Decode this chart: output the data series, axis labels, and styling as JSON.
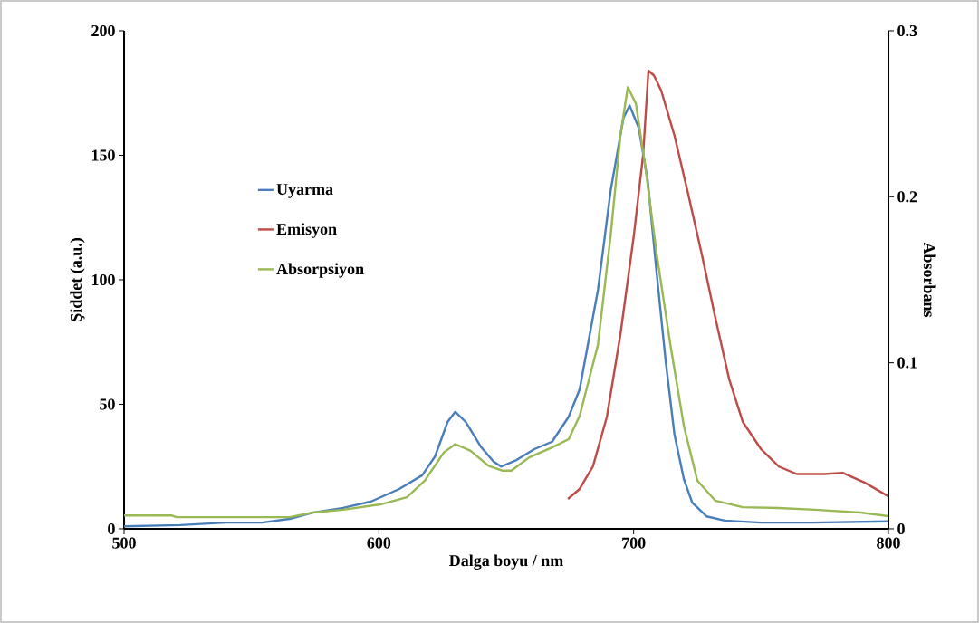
{
  "chart_data": {
    "type": "line",
    "xlabel": "Dalga boyu / nm",
    "ylabel": "Şiddet (a.u.)",
    "y2label": "Absorbans",
    "xlim": [
      500,
      800
    ],
    "ylim": [
      0,
      200
    ],
    "y2lim": [
      0,
      0.3
    ],
    "xticks": [
      500,
      600,
      700,
      800
    ],
    "yticks": [
      0,
      50,
      100,
      150,
      200
    ],
    "y2ticks": [
      0,
      0.1,
      0.2,
      0.3
    ],
    "legend": "left",
    "series": [
      {
        "name": "Uyarma",
        "color": "#4a7ebb",
        "x": [
          500,
          522,
          540,
          554,
          565,
          574,
          586,
          597,
          608,
          617,
          622,
          627,
          630,
          634,
          640,
          645,
          648,
          654,
          661,
          668,
          674.5,
          678.8,
          686,
          691,
          696,
          698.4,
          702,
          705.5,
          709,
          712.6,
          716,
          719.7,
          723,
          728.6,
          735.7,
          750,
          770,
          800
        ],
        "values": [
          1,
          1.5,
          2.5,
          2.5,
          4,
          6.5,
          8.4,
          11,
          16,
          21.5,
          29,
          43,
          47,
          43,
          33,
          27,
          25,
          27.6,
          32,
          35,
          45,
          56,
          96,
          136,
          165,
          170,
          161,
          140,
          103,
          67,
          38,
          20,
          10.5,
          5,
          3.3,
          2.5,
          2.5,
          3
        ]
      },
      {
        "name": "Emisyon",
        "color": "#be4b48",
        "x": [
          674.2,
          678.8,
          684,
          689.5,
          694.8,
          700.1,
          703.7,
          705.8,
          708,
          710.8,
          716,
          721.5,
          726.8,
          732,
          737.5,
          742.8,
          750,
          757,
          764,
          774.8,
          782,
          790.8,
          800
        ],
        "values": [
          12,
          16,
          25,
          45,
          78,
          118,
          150,
          184,
          182,
          176,
          158,
          134,
          110,
          85,
          60,
          43,
          32,
          25,
          22,
          22,
          22.5,
          18.5,
          13
        ]
      },
      {
        "name": "Absorpsiyon",
        "color": "#98b954",
        "axis": "y2",
        "x": [
          500,
          518.8,
          520.6,
          565,
          574,
          586,
          600.6,
          611,
          618,
          625.5,
          630,
          636,
          643,
          648.6,
          652,
          659,
          668,
          674.5,
          678.8,
          686,
          691,
          694.8,
          697.7,
          700.9,
          704.4,
          709,
          714.4,
          719.7,
          725,
          732,
          742.8,
          757,
          771,
          789,
          800
        ],
        "values": [
          0.008,
          0.008,
          0.007,
          0.007,
          0.0098,
          0.0115,
          0.0147,
          0.019,
          0.029,
          0.046,
          0.051,
          0.047,
          0.038,
          0.035,
          0.035,
          0.043,
          0.049,
          0.054,
          0.068,
          0.111,
          0.177,
          0.237,
          0.266,
          0.256,
          0.22,
          0.166,
          0.111,
          0.062,
          0.029,
          0.017,
          0.013,
          0.0125,
          0.0115,
          0.0098,
          0.0076
        ]
      }
    ]
  }
}
